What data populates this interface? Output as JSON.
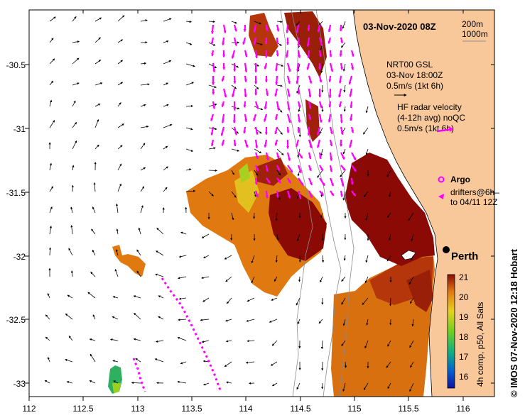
{
  "title": "03-Nov-2020 08Z",
  "depth_legend": {
    "contour_a": "200m",
    "contour_b": "1000m"
  },
  "wind": {
    "line1": "NRT00 GSL",
    "line2": "03-Nov 18:00Z",
    "line3": "0.5m/s (1kt 6h)"
  },
  "radar": {
    "line1": "HF radar velocity",
    "line2": "(4-12h avg) noQC",
    "line3": "0.5m/s (1kt 6h)"
  },
  "argo_label": "Argo",
  "drifters": {
    "line1": "drifters@6h–",
    "line2": "to 04/11 12Z"
  },
  "city": "Perth",
  "colorbar": {
    "ticks": [
      "21",
      "20",
      "19",
      "18",
      "17",
      "16"
    ],
    "label": "4h comp, p50, All Sats"
  },
  "credit": "©  IMOS 07-Nov-2020 12:18 Hobart",
  "axes": {
    "x_ticks": [
      "112",
      "112.5",
      "113",
      "113.5",
      "114",
      "114.5",
      "115",
      "115.5",
      "116"
    ],
    "y_ticks": [
      "-30.5",
      "-31",
      "-31.5",
      "-32",
      "-32.5",
      "-33"
    ]
  },
  "colors": {
    "land": "#f8c89b",
    "vector": "#ff00ff",
    "sst_hot": "#8b0a05"
  }
}
